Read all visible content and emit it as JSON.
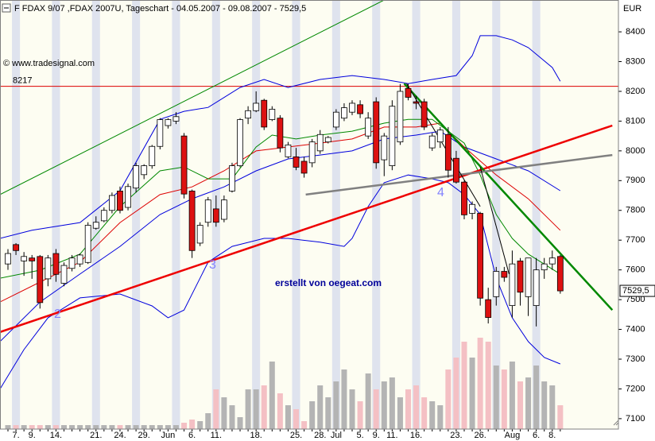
{
  "chart_data": {
    "type": "candlestick",
    "title": "F FDAX 9/07 ,FDAX 2007U, Tageschart - 04.05.2007 - 09.08.2007 - 7529,5",
    "copyright": "© www.tradesignal.com",
    "credit": "erstellt von oegeat.com",
    "y_unit": "EUR",
    "wave_labels": [
      "2",
      "3",
      "4"
    ],
    "ylim": [
      7065,
      8507
    ],
    "yticks": [
      7100,
      7200,
      7300,
      7400,
      7500,
      7600,
      7700,
      7800,
      7900,
      8000,
      8100,
      8200,
      8300,
      8400
    ],
    "level": {
      "value": 8217,
      "label": "8217",
      "color": "#dd0000"
    },
    "last_price": {
      "value": 7529.5,
      "label": "7529,5"
    },
    "up_color": "#ffffff",
    "down_color": "#dd1111",
    "volume_up_color": "#b4b4b4",
    "volume_down_color": "#f4c0c4",
    "categories": [
      null,
      "7.",
      null,
      "9.",
      null,
      null,
      "14.",
      null,
      null,
      null,
      null,
      "21.",
      null,
      null,
      "24.",
      null,
      null,
      "29.",
      null,
      null,
      "Jun",
      null,
      null,
      "6.",
      null,
      null,
      "11.",
      null,
      null,
      null,
      null,
      "18.",
      null,
      null,
      null,
      null,
      "25.",
      null,
      null,
      "28.",
      null,
      "Jul",
      null,
      null,
      "5.",
      null,
      "9.",
      null,
      "11.",
      null,
      null,
      "16.",
      null,
      null,
      null,
      null,
      "23.",
      null,
      null,
      "26.",
      null,
      null,
      null,
      "Aug",
      null,
      null,
      "6.",
      null,
      "8.",
      null
    ],
    "open": [
      7620,
      7685,
      7630,
      7640,
      7645,
      7570,
      7655,
      7555,
      7605,
      7620,
      7625,
      7740,
      7765,
      7800,
      7865,
      7810,
      7875,
      7920,
      7950,
      8015,
      8085,
      8100,
      8050,
      7865,
      7690,
      7760,
      7805,
      7770,
      7865,
      7950,
      8110,
      8135,
      8170,
      8105,
      8110,
      7980,
      7980,
      7965,
      7960,
      8000,
      8030,
      8080,
      8110,
      8130,
      8155,
      8050,
      8165,
      7970,
      7950,
      8030,
      8210,
      8165,
      8165,
      8010,
      8030,
      8055,
      7975,
      7895,
      7790,
      7790,
      7500,
      7510,
      7595,
      7480,
      7630,
      7510,
      7480,
      7600,
      7620,
      7645
    ],
    "high": [
      7670,
      7690,
      7660,
      7650,
      7650,
      7650,
      7670,
      7625,
      7650,
      7655,
      7760,
      7780,
      7810,
      7860,
      7880,
      7890,
      7960,
      7955,
      8020,
      8110,
      8110,
      8130,
      8060,
      7870,
      7760,
      7845,
      7850,
      7850,
      7960,
      8110,
      8150,
      8200,
      8175,
      8150,
      8120,
      8030,
      8010,
      7980,
      8040,
      8070,
      8050,
      8140,
      8160,
      8170,
      8170,
      8130,
      8180,
      8060,
      8170,
      8225,
      8225,
      8185,
      8175,
      8060,
      8080,
      8080,
      8000,
      7900,
      7830,
      7795,
      7540,
      7610,
      7610,
      7665,
      7640,
      7640,
      7640,
      7640,
      7665,
      7650
    ],
    "low": [
      7600,
      7650,
      7580,
      7570,
      7470,
      7545,
      7560,
      7545,
      7595,
      7610,
      7620,
      7735,
      7760,
      7790,
      7790,
      7800,
      7860,
      7905,
      7940,
      8005,
      8075,
      8090,
      7840,
      7640,
      7680,
      7745,
      7745,
      7760,
      7860,
      7945,
      8090,
      8130,
      8070,
      8100,
      7995,
      7975,
      7935,
      7910,
      7945,
      7990,
      8025,
      8070,
      8100,
      8120,
      8110,
      8040,
      7940,
      7915,
      7935,
      8020,
      8170,
      8140,
      8070,
      8000,
      8010,
      7910,
      7890,
      7770,
      7770,
      7480,
      7420,
      7480,
      7560,
      7440,
      7480,
      7445,
      7410,
      7570,
      7600,
      7520
    ],
    "close": [
      7655,
      7665,
      7645,
      7630,
      7490,
      7640,
      7585,
      7615,
      7640,
      7650,
      7750,
      7760,
      7800,
      7850,
      7800,
      7880,
      7950,
      7950,
      8015,
      8105,
      8105,
      8115,
      7855,
      7665,
      7750,
      7835,
      7760,
      7835,
      7950,
      8105,
      8135,
      8160,
      8080,
      8140,
      8010,
      8020,
      7945,
      7925,
      8030,
      8055,
      8045,
      8130,
      8145,
      8160,
      8125,
      8110,
      7960,
      8050,
      8150,
      8200,
      8180,
      8160,
      8080,
      8050,
      8070,
      7935,
      7895,
      7785,
      7820,
      7505,
      7440,
      7595,
      7575,
      7620,
      7525,
      7640,
      7600,
      7620,
      7640,
      7529.5
    ],
    "volume": [
      5,
      5,
      5,
      5,
      5,
      5,
      5,
      5,
      5,
      5,
      5,
      5,
      5,
      5,
      5,
      5,
      5,
      5,
      5,
      5,
      5,
      5,
      8,
      12,
      10,
      20,
      50,
      40,
      30,
      15,
      50,
      50,
      55,
      85,
      45,
      30,
      25,
      10,
      35,
      55,
      40,
      60,
      75,
      50,
      35,
      70,
      50,
      60,
      65,
      40,
      50,
      55,
      40,
      35,
      30,
      75,
      90,
      110,
      90,
      115,
      110,
      80,
      75,
      85,
      60,
      65,
      80,
      60,
      55,
      30
    ],
    "indicators": [
      {
        "color": "#0000dd",
        "x": [
          -1,
          3,
          9,
          14,
          19,
          22,
          25,
          29,
          32,
          35,
          39,
          43,
          47,
          50,
          53,
          56,
          58,
          59,
          61,
          63,
          65,
          68,
          69
        ],
        "values": [
          7706,
          7733,
          7759,
          7866,
          8106,
          8133,
          8146,
          8213,
          8240,
          8213,
          8240,
          8253,
          8240,
          8226,
          8240,
          8253,
          8320,
          8387,
          8387,
          8373,
          8347,
          8280,
          8234
        ]
      },
      {
        "color": "#0000dd",
        "x": [
          -1,
          2,
          5,
          9,
          14,
          18,
          20,
          22,
          25,
          28,
          32,
          35,
          39,
          42,
          43,
          45,
          47,
          50,
          53,
          55,
          57,
          59,
          61,
          63,
          65,
          67,
          69
        ],
        "values": [
          7199,
          7332,
          7439,
          7506,
          7519,
          7479,
          7439,
          7465,
          7626,
          7679,
          7706,
          7706,
          7693,
          7679,
          7706,
          7813,
          7893,
          7919,
          7906,
          7893,
          7853,
          7786,
          7572,
          7439,
          7359,
          7306,
          7284
        ]
      },
      {
        "color": "#0000dd",
        "x": [
          -1,
          4,
          9,
          14,
          19,
          23,
          27,
          31,
          35,
          39,
          43,
          47,
          51,
          54,
          57,
          61,
          65,
          69
        ],
        "values": [
          7359,
          7492,
          7586,
          7679,
          7786,
          7839,
          7879,
          7933,
          7973,
          7986,
          8000,
          8040,
          8053,
          8066,
          8013,
          7973,
          7933,
          7866
        ]
      },
      {
        "color": "#dd0000",
        "x": [
          -1,
          4,
          9,
          14,
          19,
          23,
          27,
          31,
          35,
          39,
          43,
          47,
          51,
          54,
          57,
          61,
          65,
          69
        ],
        "values": [
          7492,
          7559,
          7626,
          7759,
          7853,
          7879,
          7933,
          8000,
          8013,
          8026,
          8040,
          8080,
          8080,
          8093,
          8013,
          7919,
          7839,
          7733
        ]
      },
      {
        "color": "#008800",
        "x": [
          -1,
          4,
          9,
          14,
          19,
          22,
          25,
          28,
          31,
          33,
          36,
          39,
          43,
          47,
          50,
          53,
          55,
          57,
          59,
          61,
          63,
          65,
          69
        ],
        "values": [
          7572,
          7599,
          7653,
          7813,
          7933,
          7946,
          7906,
          7906,
          8013,
          8053,
          8040,
          8053,
          8066,
          8093,
          8106,
          8106,
          8066,
          8026,
          7919,
          7786,
          7706,
          7653,
          7586
        ]
      }
    ],
    "trendlines": [
      {
        "color": "#008800",
        "width": 1,
        "x": [
          -1,
          47
        ],
        "values": [
          7853,
          8507
        ]
      },
      {
        "color": "#ee0000",
        "width": 2.5,
        "x": [
          -1,
          75.5
        ],
        "values": [
          7391,
          8085
        ]
      },
      {
        "color": "#008800",
        "width": 2.5,
        "x": [
          49.5,
          75.5
        ],
        "values": [
          8226,
          7465
        ]
      },
      {
        "color": "#808080",
        "width": 2.5,
        "x": [
          37.2,
          75.5
        ],
        "values": [
          7853,
          7986
        ]
      },
      {
        "color": "#000000",
        "width": 1,
        "x": [
          49.8,
          59
        ],
        "values": [
          8226,
          7813
        ]
      },
      {
        "color": "#000000",
        "width": 1,
        "x": [
          59,
          62.6
        ],
        "values": [
          7946,
          7586
        ]
      }
    ]
  }
}
